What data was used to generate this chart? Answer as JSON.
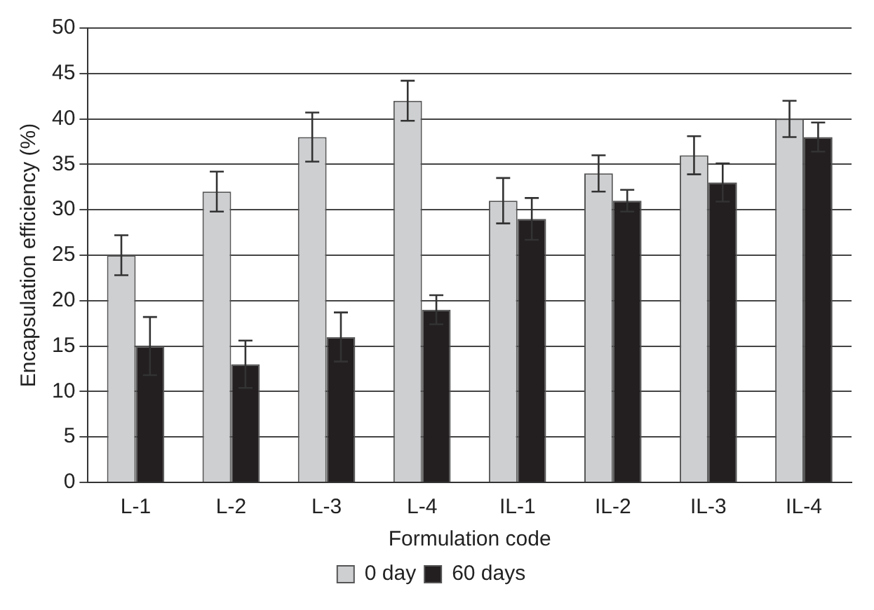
{
  "chart_data": {
    "type": "bar",
    "xlabel": "Formulation code",
    "ylabel": "Encapsulation efficiency (%)",
    "categories": [
      "L-1",
      "L-2",
      "L-3",
      "L-4",
      "IL-1",
      "IL-2",
      "IL-3",
      "IL-4"
    ],
    "series": [
      {
        "name": "0 day",
        "color": "#cdcfd1",
        "values": [
          25,
          32,
          38,
          42,
          31,
          34,
          36,
          40
        ],
        "errors": [
          2.2,
          2.2,
          2.7,
          2.2,
          2.5,
          2,
          2.1,
          2
        ]
      },
      {
        "name": "60 days",
        "color": "#231f20",
        "values": [
          15,
          13,
          16,
          19,
          29,
          31,
          33,
          38
        ],
        "errors": [
          3.2,
          2.6,
          2.7,
          1.6,
          2.3,
          1.2,
          2.1,
          1.6
        ]
      }
    ],
    "ylim": [
      0,
      50
    ],
    "yticks": [
      0,
      5,
      10,
      15,
      20,
      25,
      30,
      35,
      40,
      45,
      50
    ],
    "grid": "y",
    "legend": "bottom"
  }
}
